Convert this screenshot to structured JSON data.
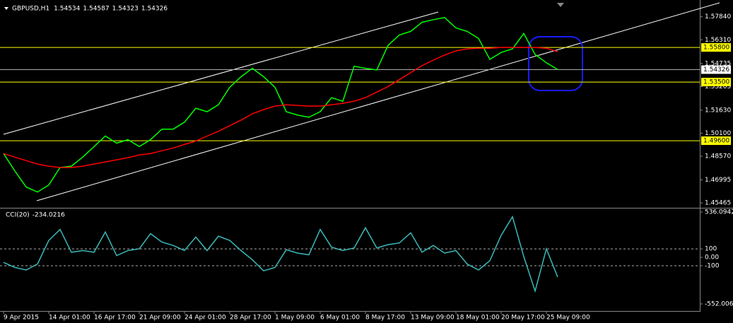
{
  "chart_data": [
    {
      "type": "line",
      "title": "GBPUSD,H1",
      "ohlc": [
        1.54534,
        1.54587,
        1.54323,
        1.54326
      ],
      "categories": [
        "9 Apr 2015",
        null,
        null,
        null,
        "14 Apr 01:00",
        null,
        null,
        null,
        "16 Apr 17:00",
        null,
        null,
        null,
        "21 Apr 09:00",
        null,
        null,
        null,
        "24 Apr 01:00",
        null,
        null,
        null,
        "28 Apr 17:00",
        null,
        null,
        null,
        "1 May 09:00",
        null,
        null,
        null,
        "6 May 01:00",
        null,
        null,
        null,
        "8 May 17:00",
        null,
        null,
        null,
        "13 May 09:00",
        null,
        null,
        null,
        "18 May 01:00",
        null,
        null,
        null,
        "20 May 17:00",
        null,
        null,
        null,
        "25 May 09:00",
        null
      ],
      "series": [
        {
          "color": "#00ff00",
          "values": [
            1.4875,
            1.4759,
            1.4652,
            1.4619,
            1.4666,
            1.4782,
            1.4791,
            1.4851,
            1.4921,
            1.4991,
            1.4944,
            1.4967,
            1.4921,
            1.4967,
            1.5037,
            1.5037,
            1.5083,
            1.5176,
            1.5153,
            1.5199,
            1.5315,
            1.5385,
            1.5441,
            1.5385,
            1.5315,
            1.5153,
            1.513,
            1.5116,
            1.5153,
            1.5246,
            1.5222,
            1.5455,
            1.5441,
            1.5431,
            1.5594,
            1.5663,
            1.5687,
            1.5747,
            1.5765,
            1.5779,
            1.571,
            1.5687,
            1.564,
            1.5501,
            1.5547,
            1.5571,
            1.5673,
            1.5533,
            1.5478,
            1.5433
          ]
        },
        {
          "color": "#ff0000",
          "values": [
            1.4875,
            1.4851,
            1.4828,
            1.4805,
            1.4791,
            1.4782,
            1.4782,
            1.4791,
            1.4805,
            1.4819,
            1.4833,
            1.4847,
            1.4865,
            1.4875,
            1.4893,
            1.4912,
            1.4935,
            1.4958,
            1.4991,
            1.5023,
            1.506,
            1.5097,
            1.5139,
            1.5167,
            1.519,
            1.5199,
            1.5195,
            1.519,
            1.519,
            1.5199,
            1.5209,
            1.5223,
            1.5246,
            1.5283,
            1.532,
            1.5366,
            1.5413,
            1.5459,
            1.5496,
            1.5529,
            1.5557,
            1.5571,
            1.5575,
            1.5575,
            1.558,
            1.558,
            1.558,
            1.558,
            1.5575,
            1.5552
          ]
        }
      ],
      "ylim": [
        1.45187,
        1.58814
      ],
      "yticks": [
        {
          "value": 1.5784,
          "label": "1.57840"
        },
        {
          "value": 1.5631,
          "label": "1.56310"
        },
        1.54735,
        1.53205,
        {
          "value": 1.5163,
          "label": "1.51630"
        },
        {
          "value": 1.501,
          "label": "1.50100"
        },
        {
          "value": 1.4857,
          "label": "1.48570"
        },
        1.46995,
        1.45465
      ],
      "levels": [
        {
          "value": 1.558,
          "label": "1.55800",
          "color": "#ffff00"
        },
        {
          "value": 1.535,
          "label": "1.53500",
          "color": "#ffff00"
        },
        {
          "value": 1.496,
          "label": "1.49600",
          "color": "#ffff00"
        }
      ],
      "current_price": 1.54326
    },
    {
      "type": "line",
      "title": "CCI(20)",
      "current_value": -234.0216,
      "series": [
        {
          "color": "#3cb8b8",
          "values": [
            -60,
            -120,
            -150,
            -80,
            200,
            330,
            60,
            80,
            60,
            300,
            20,
            80,
            100,
            280,
            180,
            140,
            80,
            240,
            80,
            250,
            200,
            80,
            -30,
            -160,
            -120,
            90,
            50,
            30,
            330,
            120,
            80,
            110,
            350,
            110,
            150,
            170,
            290,
            60,
            140,
            50,
            80,
            -80,
            -150,
            -40,
            260,
            480,
            10,
            -400,
            100,
            -234.0216
          ]
        }
      ],
      "ylim": [
        -552.0064,
        536.0942
      ],
      "yticks": [
        536.0942,
        100,
        {
          "value": 0,
          "label": "0.00"
        },
        -100,
        -552.0064
      ],
      "level_lines": [
        100,
        -100
      ]
    }
  ]
}
